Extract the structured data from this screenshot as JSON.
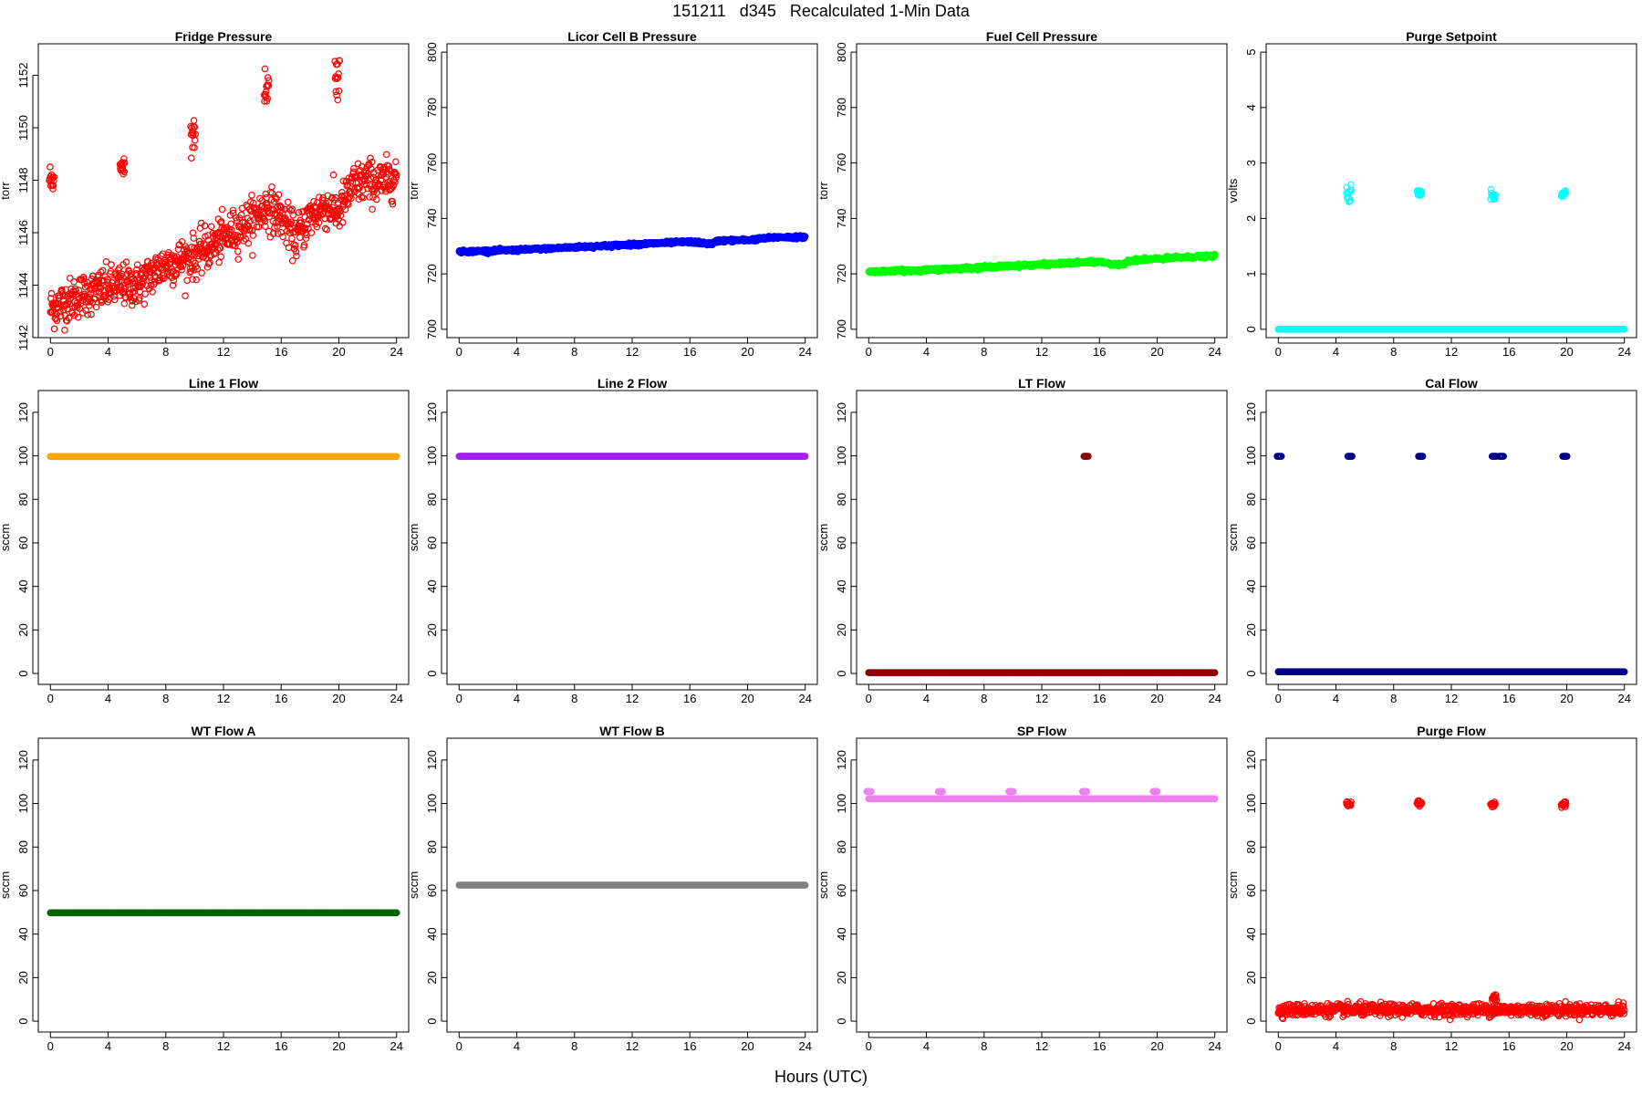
{
  "figure": {
    "title": "151211   d345   Recalculated 1-Min Data",
    "xlabel": "Hours (UTC)"
  },
  "chart_data": [
    {
      "type": "scatter",
      "title": "Fridge Pressure",
      "ylabel": "torr",
      "color": "#ff0000",
      "marker": "open",
      "xlim": [
        0,
        24
      ],
      "ylim": [
        1142,
        1153.2
      ],
      "xticks": [
        0,
        4,
        8,
        12,
        16,
        20,
        24
      ],
      "yticks": [
        1142,
        1144,
        1146,
        1148,
        1150,
        1152
      ],
      "baseline": [
        [
          0,
          1143.1
        ],
        [
          2,
          1143.6
        ],
        [
          4,
          1143.9
        ],
        [
          5,
          1144.0
        ],
        [
          6,
          1144.0
        ],
        [
          8,
          1144.8
        ],
        [
          10,
          1145.1
        ],
        [
          12,
          1145.8
        ],
        [
          14,
          1146.5
        ],
        [
          15,
          1147.0
        ],
        [
          16,
          1146.6
        ],
        [
          17,
          1145.8
        ],
        [
          18,
          1146.6
        ],
        [
          19,
          1147.0
        ],
        [
          20,
          1146.8
        ],
        [
          21,
          1147.8
        ],
        [
          22,
          1148.0
        ],
        [
          23,
          1147.9
        ],
        [
          24,
          1148.2
        ]
      ],
      "noise": 0.9,
      "clusters": [
        {
          "x": 0.1,
          "y": 1148.0,
          "spread": 0.35
        },
        {
          "x": 5.0,
          "y": 1148.6,
          "spread": 0.35
        },
        {
          "x": 9.9,
          "y": 1149.7,
          "spread": 0.5
        },
        {
          "x": 15.0,
          "y": 1151.6,
          "spread": 0.7
        },
        {
          "x": 19.9,
          "y": 1152.0,
          "spread": 0.7
        }
      ]
    },
    {
      "type": "scatter",
      "title": "Licor Cell B Pressure",
      "ylabel": "torr",
      "color": "#0000ff",
      "marker": "filled",
      "xlim": [
        0,
        24
      ],
      "ylim": [
        697,
        803
      ],
      "xticks": [
        0,
        4,
        8,
        12,
        16,
        20,
        24
      ],
      "yticks": [
        700,
        720,
        740,
        760,
        780,
        800
      ],
      "baseline": [
        [
          0,
          728.0
        ],
        [
          4,
          728.6
        ],
        [
          8,
          729.6
        ],
        [
          12,
          730.6
        ],
        [
          16,
          731.6
        ],
        [
          17.5,
          730.8
        ],
        [
          18,
          732.0
        ],
        [
          20,
          732.2
        ],
        [
          22,
          733.2
        ],
        [
          24,
          733.3
        ]
      ],
      "noise": 0.6,
      "clusters": []
    },
    {
      "type": "scatter",
      "title": "Fuel Cell Pressure",
      "ylabel": "torr",
      "color": "#00ff00",
      "marker": "filled",
      "xlim": [
        0,
        24
      ],
      "ylim": [
        697,
        803
      ],
      "xticks": [
        0,
        4,
        8,
        12,
        16,
        20,
        24
      ],
      "yticks": [
        700,
        720,
        740,
        760,
        780,
        800
      ],
      "baseline": [
        [
          0,
          720.8
        ],
        [
          4,
          721.4
        ],
        [
          8,
          722.4
        ],
        [
          12,
          723.4
        ],
        [
          16,
          724.4
        ],
        [
          17.5,
          723.0
        ],
        [
          18,
          724.8
        ],
        [
          20,
          725.4
        ],
        [
          22,
          726.0
        ],
        [
          24,
          726.4
        ]
      ],
      "noise": 0.6,
      "clusters": []
    },
    {
      "type": "scatter",
      "title": "Purge Setpoint",
      "ylabel": "volts",
      "color": "#00ffff",
      "marker": "filled",
      "xlim": [
        0,
        24
      ],
      "ylim": [
        -0.15,
        5.15
      ],
      "xticks": [
        0,
        4,
        8,
        12,
        16,
        20,
        24
      ],
      "yticks": [
        0,
        1,
        2,
        3,
        4,
        5
      ],
      "baseline": [
        [
          0,
          0
        ],
        [
          24,
          0
        ]
      ],
      "noise": 0,
      "clusters": [
        {
          "x": 4.9,
          "y": 2.45,
          "spread": 0.12,
          "open": true
        },
        {
          "x": 9.8,
          "y": 2.45,
          "spread": 0.06,
          "open": true
        },
        {
          "x": 14.9,
          "y": 2.42,
          "spread": 0.1,
          "open": true
        },
        {
          "x": 19.8,
          "y": 2.45,
          "spread": 0.06,
          "open": true
        }
      ]
    },
    {
      "type": "scatter",
      "title": "Line 1 Flow",
      "ylabel": "sccm",
      "color": "#ffa500",
      "marker": "filled",
      "xlim": [
        0,
        24
      ],
      "ylim": [
        -5,
        130
      ],
      "xticks": [
        0,
        4,
        8,
        12,
        16,
        20,
        24
      ],
      "yticks": [
        0,
        20,
        40,
        60,
        80,
        100,
        120
      ],
      "baseline": [
        [
          0,
          99.7
        ],
        [
          24,
          99.7
        ]
      ],
      "noise": 0,
      "clusters": []
    },
    {
      "type": "scatter",
      "title": "Line 2 Flow",
      "ylabel": "sccm",
      "color": "#a020f0",
      "marker": "filled",
      "xlim": [
        0,
        24
      ],
      "ylim": [
        -5,
        130
      ],
      "xticks": [
        0,
        4,
        8,
        12,
        16,
        20,
        24
      ],
      "yticks": [
        0,
        20,
        40,
        60,
        80,
        100,
        120
      ],
      "baseline": [
        [
          0,
          99.8
        ],
        [
          24,
          99.8
        ]
      ],
      "noise": 0,
      "clusters": []
    },
    {
      "type": "scatter",
      "title": "LT Flow",
      "ylabel": "sccm",
      "color": "#8b0000",
      "marker": "filled",
      "xlim": [
        0,
        24
      ],
      "ylim": [
        -5,
        130
      ],
      "xticks": [
        0,
        4,
        8,
        12,
        16,
        20,
        24
      ],
      "yticks": [
        0,
        20,
        40,
        60,
        80,
        100,
        120
      ],
      "baseline": [
        [
          0,
          0.4
        ],
        [
          24,
          0.4
        ]
      ],
      "noise": 0,
      "clusters": [
        {
          "x": 15.1,
          "y": 99.8,
          "spread": 0
        }
      ]
    },
    {
      "type": "scatter",
      "title": "Cal Flow",
      "ylabel": "sccm",
      "color": "#00008b",
      "marker": "filled",
      "xlim": [
        0,
        24
      ],
      "ylim": [
        -5,
        130
      ],
      "xticks": [
        0,
        4,
        8,
        12,
        16,
        20,
        24
      ],
      "yticks": [
        0,
        20,
        40,
        60,
        80,
        100,
        120
      ],
      "baseline": [
        [
          0,
          0.8
        ],
        [
          24,
          0.8
        ]
      ],
      "noise": 0,
      "clusters": [
        {
          "x": 0.1,
          "y": 99.8,
          "spread": 0,
          "open": true
        },
        {
          "x": 5.0,
          "y": 99.8,
          "spread": 0
        },
        {
          "x": 9.9,
          "y": 99.8,
          "spread": 0
        },
        {
          "x": 15.0,
          "y": 99.8,
          "spread": 0
        },
        {
          "x": 15.5,
          "y": 99.8,
          "spread": 0,
          "open": true
        },
        {
          "x": 19.9,
          "y": 99.8,
          "spread": 0
        }
      ]
    },
    {
      "type": "scatter",
      "title": "WT Flow A",
      "ylabel": "sccm",
      "color": "#006400",
      "marker": "filled",
      "xlim": [
        0,
        24
      ],
      "ylim": [
        -5,
        130
      ],
      "xticks": [
        0,
        4,
        8,
        12,
        16,
        20,
        24
      ],
      "yticks": [
        0,
        20,
        40,
        60,
        80,
        100,
        120
      ],
      "baseline": [
        [
          0,
          49.8
        ],
        [
          24,
          49.8
        ]
      ],
      "noise": 0,
      "clusters": []
    },
    {
      "type": "scatter",
      "title": "WT Flow B",
      "ylabel": "sccm",
      "color": "#808080",
      "marker": "filled",
      "xlim": [
        0,
        24
      ],
      "ylim": [
        -5,
        130
      ],
      "xticks": [
        0,
        4,
        8,
        12,
        16,
        20,
        24
      ],
      "yticks": [
        0,
        20,
        40,
        60,
        80,
        100,
        120
      ],
      "baseline": [
        [
          0,
          62.5
        ],
        [
          24,
          62.5
        ]
      ],
      "noise": 0,
      "clusters": []
    },
    {
      "type": "scatter",
      "title": "SP Flow",
      "ylabel": "sccm",
      "color": "#ee82ee",
      "marker": "filled",
      "xlim": [
        0,
        24
      ],
      "ylim": [
        -5,
        130
      ],
      "xticks": [
        0,
        4,
        8,
        12,
        16,
        20,
        24
      ],
      "yticks": [
        0,
        20,
        40,
        60,
        80,
        100,
        120
      ],
      "baseline": [
        [
          0,
          102.2
        ],
        [
          24,
          102.2
        ]
      ],
      "noise": 0,
      "clusters": [
        {
          "x": 0.05,
          "y": 105.5,
          "spread": 0,
          "open": true
        },
        {
          "x": 5.0,
          "y": 105.5,
          "spread": 0
        },
        {
          "x": 9.9,
          "y": 105.5,
          "spread": 0
        },
        {
          "x": 15.0,
          "y": 105.5,
          "spread": 0
        },
        {
          "x": 19.9,
          "y": 105.5,
          "spread": 0
        }
      ]
    },
    {
      "type": "scatter",
      "title": "Purge Flow",
      "ylabel": "sccm",
      "color": "#ff0000",
      "marker": "open",
      "xlim": [
        0,
        24
      ],
      "ylim": [
        -5,
        130
      ],
      "xticks": [
        0,
        4,
        8,
        12,
        16,
        20,
        24
      ],
      "yticks": [
        0,
        20,
        40,
        60,
        80,
        100,
        120
      ],
      "baseline": [
        [
          0,
          5.2
        ],
        [
          24,
          5.2
        ]
      ],
      "noise": 3.0,
      "clusters": [
        {
          "x": 4.9,
          "y": 99.8,
          "spread": 1.2
        },
        {
          "x": 9.8,
          "y": 99.8,
          "spread": 1.0
        },
        {
          "x": 14.9,
          "y": 99.8,
          "spread": 1.0
        },
        {
          "x": 19.8,
          "y": 99.8,
          "spread": 1.0
        },
        {
          "x": 15.0,
          "y": 10.5,
          "spread": 1.5
        }
      ]
    }
  ]
}
